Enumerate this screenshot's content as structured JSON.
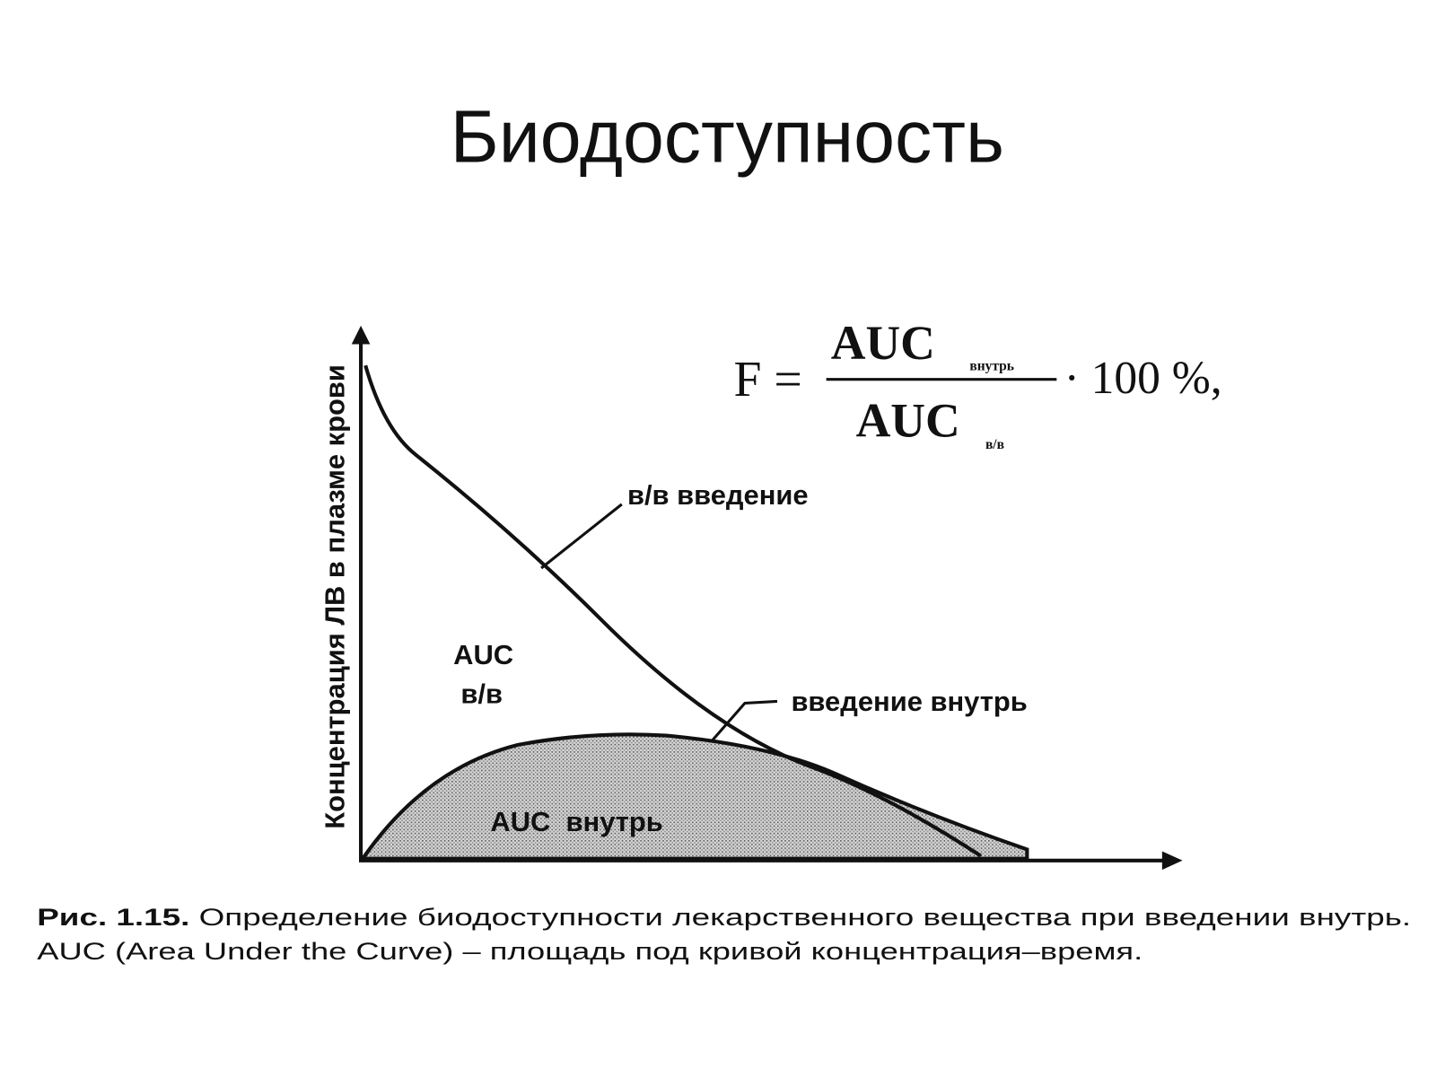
{
  "title": "Биодоступность",
  "diagram": {
    "y_axis_label": "Концентрация ЛВ в плазме крови",
    "formula": {
      "lhs": "F =",
      "numerator": "AUC",
      "numerator_sub": "внутрь",
      "denominator": "AUC",
      "denominator_sub": "в/в",
      "factor": "· 100 %,"
    },
    "labels": {
      "iv_curve": "в/в введение",
      "auc_iv": "AUC",
      "auc_iv_sub": "в/в",
      "oral_curve": "введение внутрь",
      "auc_oral": "AUC  внутрь"
    }
  },
  "caption": {
    "figure": "Рис. 1.15.",
    "line1": "Определение биодоступности лекарственного вещества при введении внутрь.",
    "line2": "AUC (Area Under the Curve) – площадь под кривой концентрация–время."
  }
}
